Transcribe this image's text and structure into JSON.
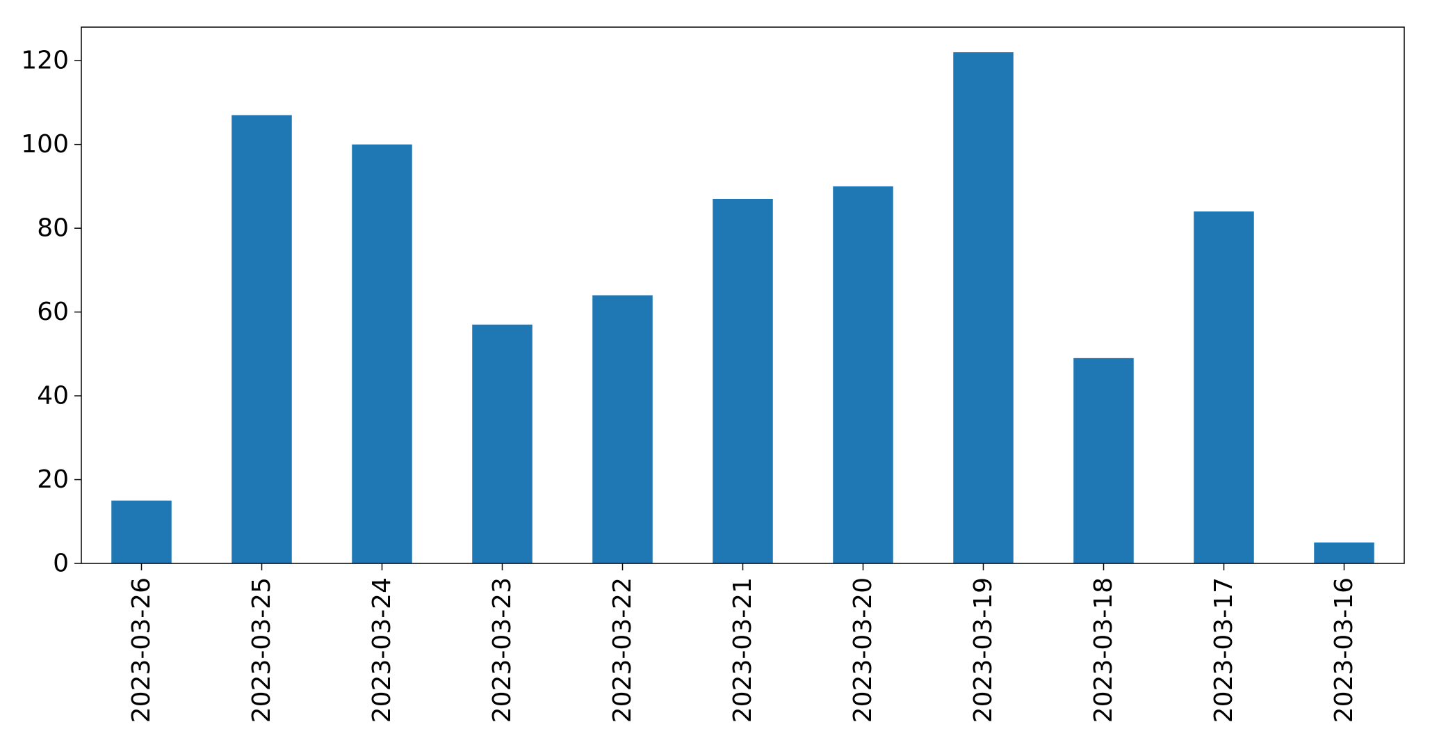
{
  "chart_data": {
    "type": "bar",
    "title": "",
    "xlabel": "",
    "ylabel": "",
    "categories": [
      "2023-03-26",
      "2023-03-25",
      "2023-03-24",
      "2023-03-23",
      "2023-03-22",
      "2023-03-21",
      "2023-03-20",
      "2023-03-19",
      "2023-03-18",
      "2023-03-17",
      "2023-03-16"
    ],
    "values": [
      15,
      107,
      100,
      57,
      64,
      87,
      90,
      122,
      49,
      84,
      5
    ],
    "ylim": [
      0,
      128
    ],
    "yticks": [
      0,
      20,
      40,
      60,
      80,
      100,
      120
    ],
    "grid": false,
    "legend": "none",
    "bar_color": "#1f77b4"
  }
}
